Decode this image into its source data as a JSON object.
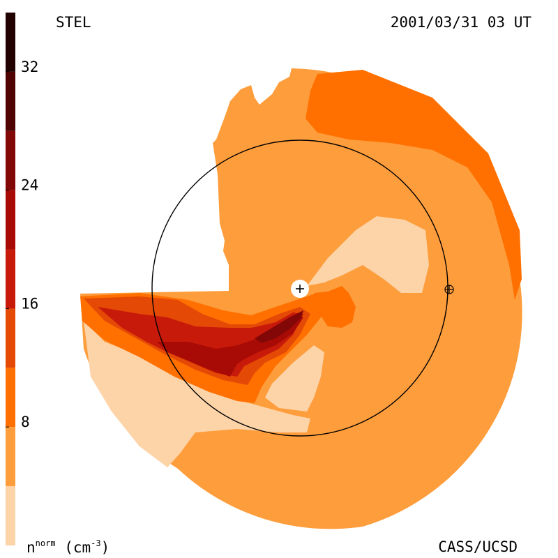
{
  "header": {
    "left_label": "STEL",
    "right_label": "2001/03/31 03 UT"
  },
  "footer": {
    "right_label": "CASS/UCSD"
  },
  "colorbar": {
    "title_main": "n",
    "title_sup": "norm",
    "title_unit_pre": "(cm",
    "title_unit_sup": "-3",
    "title_unit_post": ")",
    "ticks": [
      {
        "value": 8,
        "label": "8"
      },
      {
        "value": 16,
        "label": "16"
      },
      {
        "value": 24,
        "label": "24"
      },
      {
        "value": 32,
        "label": "32"
      }
    ],
    "range": [
      0,
      36
    ],
    "levels": [
      {
        "from": 0,
        "to": 4,
        "color": "#fdd3a8"
      },
      {
        "from": 4,
        "to": 8,
        "color": "#fe9d3c"
      },
      {
        "from": 8,
        "to": 12,
        "color": "#ff7000"
      },
      {
        "from": 12,
        "to": 16,
        "color": "#e44a05"
      },
      {
        "from": 16,
        "to": 20,
        "color": "#c81a0a"
      },
      {
        "from": 20,
        "to": 24,
        "color": "#a80b05"
      },
      {
        "from": 24,
        "to": 28,
        "color": "#820707"
      },
      {
        "from": 28,
        "to": 32,
        "color": "#4f0303"
      },
      {
        "from": 32,
        "to": 36,
        "color": "#220101"
      }
    ]
  },
  "chart_data": {
    "type": "heatmap",
    "title": "2001/03/31 03 UT",
    "quantity": "n norm (cm-3)",
    "colors": {
      "level_0_4": "#fdd3a8",
      "level_4_8": "#fe9d3c",
      "level_8_12": "#ff7000",
      "level_12_16": "#e44a05",
      "level_16_20": "#c81a0a",
      "level_20_24": "#a80b05",
      "level_24_28": "#820707"
    },
    "markers": [
      "sun-plus-icon",
      "earth-icon"
    ],
    "reference_circle": "earth-orbit"
  }
}
